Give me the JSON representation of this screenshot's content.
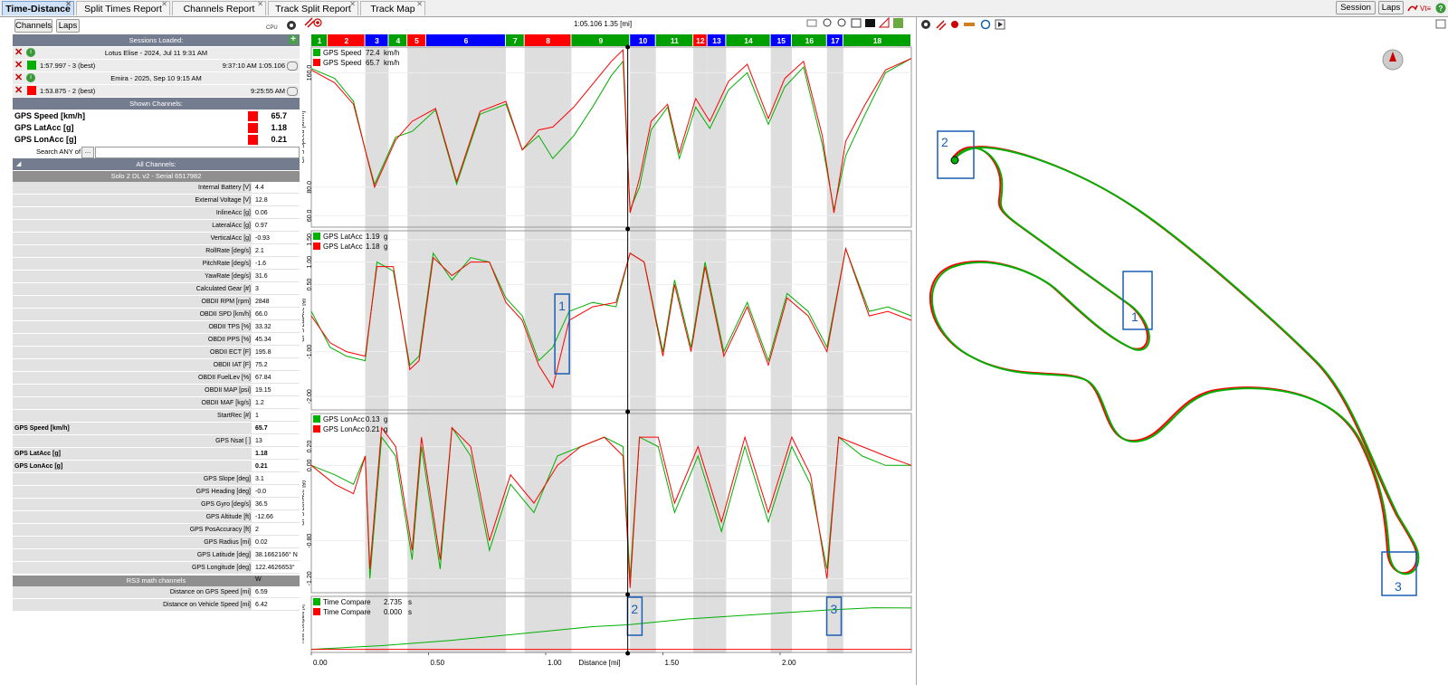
{
  "tabs": [
    {
      "label": "Time-Distance"
    },
    {
      "label": "Split Times Report"
    },
    {
      "label": "Channels Report"
    },
    {
      "label": "Track Split Report"
    },
    {
      "label": "Track Map"
    }
  ],
  "topright": {
    "session_label": "Session",
    "laps_label": "Laps"
  },
  "left": {
    "channels_button": "Channels",
    "laps_button": "Laps",
    "sessions_header": "Sessions Loaded:",
    "sessions": [
      {
        "title": "Lotus Elise - 2024, Jul 11 9:31 AM",
        "lap": "1:57.997 - 3 (best)",
        "time": "9:37:10 AM 1:05.106",
        "color": "#00b000"
      },
      {
        "title": "Emira - 2025, Sep 10 9:15 AM",
        "lap": "1:53.875 - 2 (best)",
        "time": "9:25:55 AM",
        "color": "#ff0000"
      }
    ],
    "shown_header": "Shown Channels:",
    "shown": [
      {
        "name": "GPS Speed [km/h]",
        "value": "65.7"
      },
      {
        "name": "GPS LatAcc [g]",
        "value": "1.18"
      },
      {
        "name": "GPS LonAcc [g]",
        "value": "0.21"
      }
    ],
    "search_label": "Search ANY of",
    "all_header": "All Channels:",
    "device_header": "Solo 2 DL v2 - Serial 6517982",
    "channels": [
      {
        "name": "Internal Battery [V]",
        "value": "4.4"
      },
      {
        "name": "External Voltage [V]",
        "value": "12.8"
      },
      {
        "name": "InlineAcc [g]",
        "value": "0.06"
      },
      {
        "name": "LateralAcc [g]",
        "value": "0.97"
      },
      {
        "name": "VerticalAcc [g]",
        "value": "-0.93"
      },
      {
        "name": "RollRate [deg/s]",
        "value": "2.1"
      },
      {
        "name": "PitchRate [deg/s]",
        "value": "-1.6"
      },
      {
        "name": "YawRate [deg/s]",
        "value": "31.6"
      },
      {
        "name": "Calculated Gear [#]",
        "value": "3"
      },
      {
        "name": "OBDII RPM [rpm]",
        "value": "2848"
      },
      {
        "name": "OBDII SPD [km/h]",
        "value": "66.0"
      },
      {
        "name": "OBDII TPS [%]",
        "value": "33.32"
      },
      {
        "name": "OBDII PPS [%]",
        "value": "45.34"
      },
      {
        "name": "OBDII ECT [F]",
        "value": "195.8"
      },
      {
        "name": "OBDII IAT [F]",
        "value": "75.2"
      },
      {
        "name": "OBDII FuelLev [%]",
        "value": "67.84"
      },
      {
        "name": "OBDII MAP [psi]",
        "value": "19.15"
      },
      {
        "name": "OBDII MAF [kg/s]",
        "value": "1.2"
      },
      {
        "name": "StartRec [#]",
        "value": "1"
      },
      {
        "name": "GPS Speed [km/h]",
        "value": "65.7",
        "bold": true
      },
      {
        "name": "GPS Nsat [ ]",
        "value": "13"
      },
      {
        "name": "GPS LatAcc [g]",
        "value": "1.18",
        "bold": true
      },
      {
        "name": "GPS LonAcc [g]",
        "value": "0.21",
        "bold": true
      },
      {
        "name": "GPS Slope [deg]",
        "value": "3.1"
      },
      {
        "name": "GPS Heading [deg]",
        "value": "-0.0"
      },
      {
        "name": "GPS Gyro [deg/s]",
        "value": "36.5"
      },
      {
        "name": "GPS Altitude [ft]",
        "value": "-12.66"
      },
      {
        "name": "GPS PosAccuracy [ft]",
        "value": "2"
      },
      {
        "name": "GPS Radius [mi]",
        "value": "0.02"
      },
      {
        "name": "GPS Latitude [deg]",
        "value": "38.1662166° N"
      },
      {
        "name": "GPS Longitude [deg]",
        "value": "122.4626653° W"
      }
    ],
    "math_header": "RS3 math channels",
    "math": [
      {
        "name": "Distance on GPS Speed [mi]",
        "value": "6.59"
      },
      {
        "name": "Distance on Vehicle Speed [mi]",
        "value": "6.42"
      }
    ]
  },
  "graph": {
    "cursor_readout": "1:05.106 1.35 [mi]",
    "cursor_distance": 1.35,
    "segments": [
      {
        "label": "1",
        "start": 0.0,
        "end": 0.07,
        "color": "#00a000",
        "shade": false
      },
      {
        "label": "2",
        "start": 0.07,
        "end": 0.23,
        "color": "#ff0000",
        "shade": false
      },
      {
        "label": "3",
        "start": 0.23,
        "end": 0.33,
        "color": "#0000ff",
        "shade": true
      },
      {
        "label": "4",
        "start": 0.33,
        "end": 0.41,
        "color": "#00a000",
        "shade": false
      },
      {
        "label": "5",
        "start": 0.41,
        "end": 0.49,
        "color": "#ff0000",
        "shade": true
      },
      {
        "label": "6",
        "start": 0.49,
        "end": 0.83,
        "color": "#0000ff",
        "shade": true
      },
      {
        "label": "7",
        "start": 0.83,
        "end": 0.91,
        "color": "#00a000",
        "shade": false
      },
      {
        "label": "8",
        "start": 0.91,
        "end": 1.11,
        "color": "#ff0000",
        "shade": true
      },
      {
        "label": "9",
        "start": 1.11,
        "end": 1.36,
        "color": "#00a000",
        "shade": false
      },
      {
        "label": "10",
        "start": 1.36,
        "end": 1.47,
        "color": "#0000ff",
        "shade": true
      },
      {
        "label": "11",
        "start": 1.47,
        "end": 1.63,
        "color": "#00a000",
        "shade": false
      },
      {
        "label": "12",
        "start": 1.63,
        "end": 1.69,
        "color": "#ff0000",
        "shade": true
      },
      {
        "label": "13",
        "start": 1.69,
        "end": 1.77,
        "color": "#0000ff",
        "shade": true
      },
      {
        "label": "14",
        "start": 1.77,
        "end": 1.96,
        "color": "#00a000",
        "shade": false
      },
      {
        "label": "15",
        "start": 1.96,
        "end": 2.05,
        "color": "#0000ff",
        "shade": true
      },
      {
        "label": "16",
        "start": 2.05,
        "end": 2.2,
        "color": "#00a000",
        "shade": false
      },
      {
        "label": "17",
        "start": 2.2,
        "end": 2.27,
        "color": "#0000ff",
        "shade": true
      },
      {
        "label": "18",
        "start": 2.27,
        "end": 2.56,
        "color": "#00a000",
        "shade": false
      }
    ],
    "xlabel": "Distance [mi]",
    "xticks": [
      "0.00",
      "0.50",
      "1.00",
      "1.50",
      "2.00"
    ],
    "markers": [
      {
        "label": "1",
        "pane": 1,
        "x": 1.07
      },
      {
        "label": "2",
        "pane": 3,
        "x": 1.38
      },
      {
        "label": "3",
        "pane": 3,
        "x": 2.23
      }
    ]
  },
  "chart_data": [
    {
      "type": "line",
      "ylabel": "GPS Speed [km/h]",
      "yticks": [
        "160.0",
        "80.0",
        "60.0"
      ],
      "ylim": [
        52,
        178
      ],
      "legend": [
        {
          "name": "GPS Speed",
          "value": "72.4",
          "unit": "km/h",
          "color": "#00b000"
        },
        {
          "name": "GPS Speed",
          "value": "65.7",
          "unit": "km/h",
          "color": "#ff0000"
        }
      ],
      "x": [
        0.0,
        0.1,
        0.18,
        0.23,
        0.27,
        0.36,
        0.43,
        0.53,
        0.62,
        0.72,
        0.83,
        0.9,
        0.97,
        1.03,
        1.12,
        1.2,
        1.28,
        1.33,
        1.36,
        1.4,
        1.45,
        1.52,
        1.57,
        1.64,
        1.7,
        1.78,
        1.86,
        1.95,
        2.02,
        2.1,
        2.18,
        2.23,
        2.28,
        2.36,
        2.45,
        2.56
      ],
      "series": [
        {
          "values": [
            163,
            156,
            140,
            106,
            82,
            115,
            119,
            134,
            82,
            131,
            138,
            106,
            116,
            100,
            116,
            136,
            158,
            168,
            64,
            80,
            120,
            136,
            100,
            136,
            121,
            148,
            160,
            124,
            150,
            164,
            110,
            64,
            102,
            130,
            160,
            170
          ]
        },
        {
          "values": [
            162,
            153,
            138,
            106,
            80,
            113,
            126,
            135,
            84,
            133,
            140,
            106,
            120,
            122,
            136,
            152,
            168,
            176,
            62,
            86,
            126,
            138,
            104,
            142,
            126,
            154,
            166,
            128,
            156,
            168,
            116,
            62,
            112,
            137,
            162,
            170
          ]
        }
      ]
    },
    {
      "type": "line",
      "ylabel": "GPS LatAcc [g]",
      "yticks": [
        "1.50",
        "1.00",
        "0.50",
        "-1.00",
        "-2.00"
      ],
      "ylim": [
        -2.3,
        1.7
      ],
      "legend": [
        {
          "name": "GPS LatAcc",
          "value": "1.19",
          "unit": "g",
          "color": "#00b000"
        },
        {
          "name": "GPS LatAcc",
          "value": "1.18",
          "unit": "g",
          "color": "#ff0000"
        }
      ],
      "x": [
        0.0,
        0.08,
        0.15,
        0.23,
        0.28,
        0.35,
        0.42,
        0.46,
        0.52,
        0.6,
        0.68,
        0.76,
        0.83,
        0.9,
        0.97,
        1.03,
        1.1,
        1.2,
        1.3,
        1.36,
        1.42,
        1.5,
        1.55,
        1.62,
        1.68,
        1.76,
        1.86,
        1.95,
        2.03,
        2.12,
        2.2,
        2.28,
        2.38,
        2.46,
        2.56
      ],
      "series": [
        {
          "values": [
            -0.1,
            -0.9,
            -1.1,
            -1.2,
            1.0,
            0.8,
            -1.3,
            -1.1,
            1.2,
            0.6,
            1.1,
            1.0,
            0.2,
            -0.2,
            -1.2,
            -0.9,
            -0.1,
            0.1,
            0.0,
            1.2,
            1.0,
            -1.0,
            0.6,
            -0.9,
            1.0,
            -1.0,
            0.1,
            -1.2,
            0.3,
            -0.1,
            -0.9,
            1.3,
            -0.1,
            0.0,
            -0.2
          ]
        },
        {
          "values": [
            -0.2,
            -0.8,
            -1.0,
            -1.1,
            0.9,
            0.9,
            -1.4,
            -1.2,
            1.1,
            0.7,
            1.0,
            1.0,
            0.1,
            -0.3,
            -1.3,
            -1.8,
            -0.3,
            0.0,
            0.1,
            1.2,
            1.0,
            -1.1,
            0.5,
            -1.0,
            0.9,
            -1.1,
            0.0,
            -1.3,
            0.2,
            -0.2,
            -1.0,
            1.3,
            -0.2,
            -0.1,
            -0.3
          ]
        }
      ]
    },
    {
      "type": "line",
      "ylabel": "GPS LonAcc [g]",
      "yticks": [
        "0.20",
        "0.00",
        "-0.80",
        "-1.20"
      ],
      "ylim": [
        -1.35,
        0.55
      ],
      "legend": [
        {
          "name": "GPS LonAcc",
          "value": "0.13",
          "unit": "g",
          "color": "#00b000"
        },
        {
          "name": "GPS LonAcc",
          "value": "0.21",
          "unit": "g",
          "color": "#ff0000"
        }
      ],
      "x": [
        0.0,
        0.1,
        0.18,
        0.23,
        0.25,
        0.3,
        0.36,
        0.43,
        0.47,
        0.55,
        0.6,
        0.68,
        0.76,
        0.85,
        0.95,
        1.05,
        1.15,
        1.25,
        1.33,
        1.36,
        1.4,
        1.48,
        1.55,
        1.65,
        1.75,
        1.85,
        1.95,
        2.05,
        2.13,
        2.2,
        2.25,
        2.35,
        2.45,
        2.56
      ],
      "series": [
        {
          "values": [
            0.0,
            -0.1,
            -0.2,
            0.1,
            -1.2,
            0.3,
            0.1,
            -1.0,
            0.2,
            -1.1,
            0.4,
            0.1,
            -0.9,
            -0.2,
            -0.5,
            0.1,
            0.2,
            0.3,
            0.2,
            -1.2,
            0.3,
            0.2,
            -0.5,
            0.1,
            -0.7,
            0.2,
            -0.6,
            0.2,
            -0.2,
            -1.1,
            0.3,
            0.1,
            0.0,
            0.0
          ]
        },
        {
          "values": [
            0.0,
            -0.2,
            -0.3,
            0.1,
            -1.1,
            0.4,
            0.2,
            -0.9,
            0.3,
            -1.0,
            0.4,
            0.2,
            -0.8,
            -0.1,
            -0.4,
            0.0,
            0.2,
            0.3,
            0.1,
            -1.3,
            0.3,
            0.3,
            -0.4,
            0.2,
            -0.6,
            0.3,
            -0.5,
            0.3,
            -0.1,
            -1.2,
            0.3,
            0.2,
            0.1,
            0.0
          ]
        }
      ]
    },
    {
      "type": "line",
      "ylabel": "Time Compare [s]",
      "ylim": [
        -0.2,
        3.5
      ],
      "legend": [
        {
          "name": "Time Compare",
          "value": "2.735",
          "unit": "s",
          "color": "#00b000"
        },
        {
          "name": "Time Compare",
          "value": "0.000",
          "unit": "s",
          "color": "#ff0000"
        }
      ],
      "x": [
        0.0,
        0.3,
        0.6,
        0.9,
        1.2,
        1.35,
        1.6,
        1.9,
        2.2,
        2.4,
        2.56
      ],
      "series": [
        {
          "values": [
            0.0,
            0.25,
            0.6,
            1.05,
            1.5,
            1.62,
            2.0,
            2.3,
            2.6,
            2.75,
            2.73
          ]
        },
        {
          "values": [
            0,
            0,
            0,
            0,
            0,
            0,
            0,
            0,
            0,
            0,
            0
          ]
        }
      ]
    }
  ],
  "trackmap": {
    "markers": [
      {
        "label": "2"
      },
      {
        "label": "1"
      },
      {
        "label": "3"
      }
    ]
  }
}
